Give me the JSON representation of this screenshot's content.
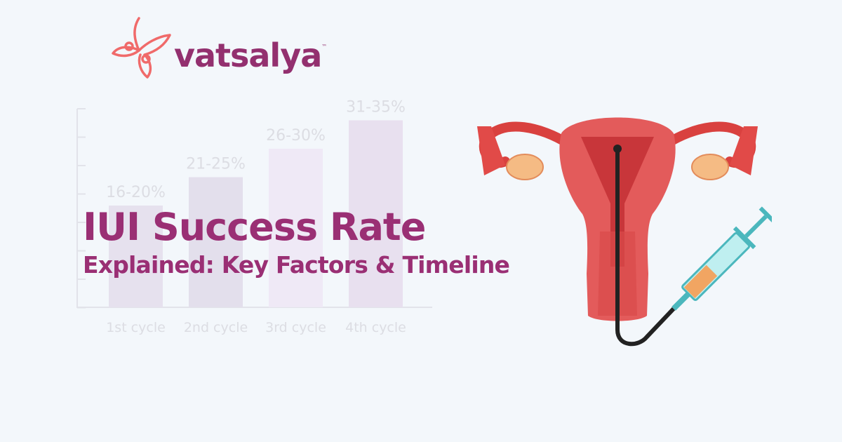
{
  "brand": {
    "name": "vatsalya",
    "trademark": "™",
    "logo_color": "#f06a6a",
    "text_color": "#93306f"
  },
  "headline": {
    "line1": "IUI Success Rate",
    "line2": "Explained: Key Factors & Timeline",
    "color": "#9a2f74"
  },
  "chart_data": {
    "type": "bar",
    "categories": [
      "1st cycle",
      "2nd cycle",
      "3rd cycle",
      "4th cycle"
    ],
    "data_labels": [
      "16-20%",
      "21-25%",
      "26-30%",
      "31-35%"
    ],
    "ranges": [
      [
        16,
        20
      ],
      [
        21,
        25
      ],
      [
        26,
        30
      ],
      [
        31,
        35
      ]
    ],
    "bar_colors": [
      "#e6e1ee",
      "#e3dfec",
      "#efe9f6",
      "#e8e0ef"
    ],
    "grid": false
  },
  "illustration": {
    "subject": "uterus-with-iui-syringe",
    "uterus_color": "#e35b5b",
    "syringe_color": "#5cc6c9"
  }
}
